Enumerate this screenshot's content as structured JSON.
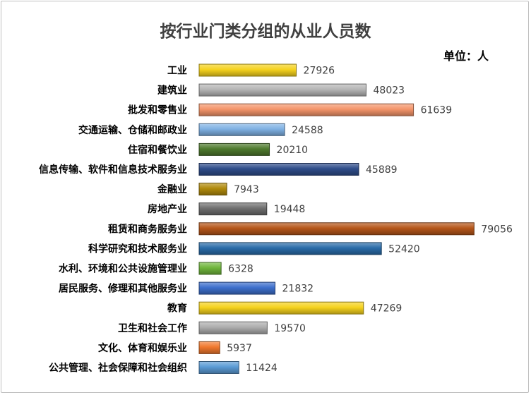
{
  "chart_data": {
    "type": "bar",
    "orientation": "horizontal",
    "title": "按行业门类分组的从业人员数",
    "unit_label": "单位：人",
    "categories": [
      "工业",
      "建筑业",
      "批发和零售业",
      "交通运输、仓储和邮政业",
      "住宿和餐饮业",
      "信息传输、软件和信息技术服务业",
      "金融业",
      "房地产业",
      "租赁和商务服务业",
      "科学研究和技术服务业",
      "水利、环境和公共设施管理业",
      "居民服务、修理和其他服务业",
      "教育",
      "卫生和社会工作",
      "文化、体育和娱乐业",
      "公共管理、社会保障和社会组织"
    ],
    "values": [
      27926,
      48023,
      61639,
      24588,
      20210,
      45889,
      7943,
      19448,
      79056,
      52420,
      6328,
      21832,
      47269,
      19570,
      5937,
      11424
    ],
    "bar_colors": [
      "#F5D21E",
      "#B5B5B5",
      "#F4956A",
      "#7FB1E3",
      "#4E7A2E",
      "#2F4D8A",
      "#B08A0C",
      "#6E6E6E",
      "#B5561A",
      "#2A6BA8",
      "#6FB53C",
      "#3D6FCC",
      "#F5D21E",
      "#ADADAD",
      "#F0782E",
      "#5B9BD5"
    ],
    "xlim": [
      0,
      80000
    ],
    "grid": false,
    "legend": "none",
    "data_labels": true
  }
}
